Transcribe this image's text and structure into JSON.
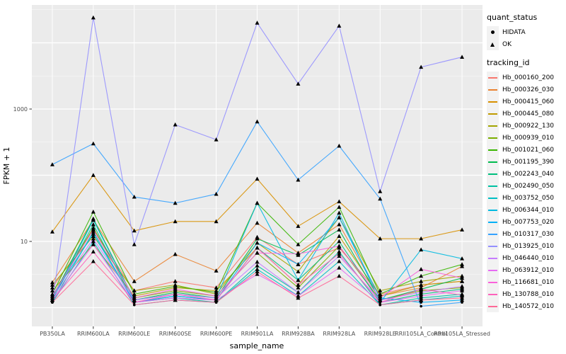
{
  "legend": {
    "quant_status": {
      "title": "quant_status",
      "items": [
        {
          "label": "HIDATA",
          "marker": "circle"
        },
        {
          "label": "OK",
          "marker": "triangle"
        }
      ]
    },
    "tracking_id": {
      "title": "tracking_id"
    }
  },
  "colors": {
    "panel_background": "#EBEBEB",
    "grid": "#FFFFFF",
    "tick_text": "#4D4D4D",
    "axis_title_text": "#000000",
    "marker": "#000000",
    "legend_key_background": "#F2F2F2",
    "page_background": "#FFFFFF"
  },
  "chart_data": {
    "type": "line",
    "title": "",
    "xlabel": "sample_name",
    "ylabel": "FPKM + 1",
    "y_scale": "log10",
    "ylim": [
      0.5,
      37000
    ],
    "y_labeled_ticks": [
      1000,
      10
    ],
    "y_major_gridlines": [
      1,
      10,
      100,
      1000,
      10000
    ],
    "y_minor_gridlines_log_exponents": [
      0.5,
      1.5,
      2.5,
      3.5,
      4.5
    ],
    "grid": true,
    "legend_position": "right",
    "marker_rule": {
      "HIDATA": "circle",
      "OK": "triangle"
    },
    "hidata_marker_below": 1.3,
    "categories": [
      "PB350LA",
      "RRIM600LA",
      "RRIM600LE",
      "RRIM600SE",
      "RRIM600PE",
      "RRIM901LA",
      "RRIM928BA",
      "RRIM928LA",
      "RRIM928LE",
      "RRII105LA_Control",
      "RRII105LA_Stressed"
    ],
    "series": [
      {
        "name": "Hb_000160_200",
        "color": "#F8766D",
        "values": [
          2.0,
          15,
          1.8,
          2.5,
          2.0,
          11.6,
          4.5,
          8,
          1.6,
          2.2,
          2.5
        ]
      },
      {
        "name": "Hb_000326_030",
        "color": "#EA8331",
        "values": [
          2.4,
          21,
          2.5,
          6.4,
          3.6,
          19,
          6.7,
          18,
          1.5,
          2.0,
          4.2
        ]
      },
      {
        "name": "Hb_000415_060",
        "color": "#D89000",
        "values": [
          14,
          100,
          14.5,
          20,
          20,
          88,
          17,
          40,
          11,
          11,
          15
        ]
      },
      {
        "name": "Hb_000445_080",
        "color": "#C09B00",
        "values": [
          1.8,
          9,
          1.5,
          2.0,
          1.8,
          8,
          2.2,
          12,
          1.5,
          2.2,
          2.5
        ]
      },
      {
        "name": "Hb_000922_130",
        "color": "#A3A500",
        "values": [
          2.2,
          12,
          1.8,
          2.2,
          1.6,
          9.5,
          3.5,
          23,
          1.8,
          2.5,
          3.0
        ]
      },
      {
        "name": "Hb_000939_010",
        "color": "#7CAE00",
        "values": [
          1.5,
          16,
          1.4,
          1.8,
          1.5,
          6.7,
          2.0,
          8.5,
          1.3,
          1.8,
          2.0
        ]
      },
      {
        "name": "Hb_001021_060",
        "color": "#39B600",
        "values": [
          1.6,
          28,
          1.6,
          2.1,
          1.7,
          38,
          9,
          33,
          1.6,
          3.0,
          4.5
        ]
      },
      {
        "name": "Hb_001195_390",
        "color": "#00BB4E",
        "values": [
          1.4,
          22,
          1.3,
          1.7,
          1.4,
          11,
          6.2,
          15,
          1.3,
          1.9,
          2.8
        ]
      },
      {
        "name": "Hb_002243_040",
        "color": "#00BF7D",
        "values": [
          1.3,
          18,
          1.2,
          1.5,
          1.3,
          8,
          2.6,
          10,
          1.2,
          1.6,
          1.9
        ]
      },
      {
        "name": "Hb_002490_050",
        "color": "#00C1A3",
        "values": [
          1.2,
          14,
          1.2,
          1.4,
          1.2,
          4.3,
          1.7,
          7,
          1.1,
          1.4,
          1.6
        ]
      },
      {
        "name": "Hb_003752_050",
        "color": "#00BFC4",
        "values": [
          1.2,
          10,
          1.1,
          1.3,
          1.2,
          3.8,
          1.5,
          5,
          1.1,
          1.3,
          1.5
        ]
      },
      {
        "name": "Hb_006344_010",
        "color": "#00BAE0",
        "values": [
          1.3,
          21,
          1.3,
          1.6,
          1.4,
          38,
          2.6,
          27,
          1.2,
          7.5,
          5.5
        ]
      },
      {
        "name": "Hb_007753_020",
        "color": "#00B0F6",
        "values": [
          1.5,
          13,
          1.2,
          1.5,
          1.3,
          9.5,
          4.5,
          23,
          1.4,
          1.2,
          1.3
        ]
      },
      {
        "name": "Hb_010317_030",
        "color": "#35A2FF",
        "values": [
          145,
          300,
          47,
          38,
          52,
          645,
          85,
          277,
          44,
          1.05,
          1.2
        ]
      },
      {
        "name": "Hb_013925_010",
        "color": "#9590FF",
        "values": [
          1.2,
          24000,
          9,
          580,
          345,
          20000,
          2400,
          18000,
          57,
          4300,
          6100
        ]
      },
      {
        "name": "Hb_046440_010",
        "color": "#C77CFF",
        "values": [
          1.4,
          11,
          1.3,
          1.6,
          1.4,
          4.9,
          1.7,
          6,
          1.3,
          1.7,
          2.1
        ]
      },
      {
        "name": "Hb_063912_010",
        "color": "#E76BF3",
        "values": [
          1.3,
          9,
          1.2,
          1.4,
          1.3,
          3.2,
          1.5,
          4,
          1.2,
          1.5,
          1.8
        ]
      },
      {
        "name": "Hb_116681_010",
        "color": "#FA62DB",
        "values": [
          1.5,
          15,
          1.4,
          1.9,
          1.5,
          6.7,
          6.5,
          8.5,
          1.4,
          3.8,
          2.8
        ]
      },
      {
        "name": "Hb_130788_010",
        "color": "#FF62BC",
        "values": [
          1.3,
          7,
          1.2,
          1.6,
          1.3,
          8,
          2.2,
          6.5,
          1.2,
          1.9,
          1.55
        ]
      },
      {
        "name": "Hb_140572_010",
        "color": "#FF6A98",
        "values": [
          1.2,
          5,
          1.1,
          1.3,
          1.2,
          3.5,
          1.4,
          3,
          1.1,
          1.3,
          1.4
        ]
      }
    ]
  }
}
